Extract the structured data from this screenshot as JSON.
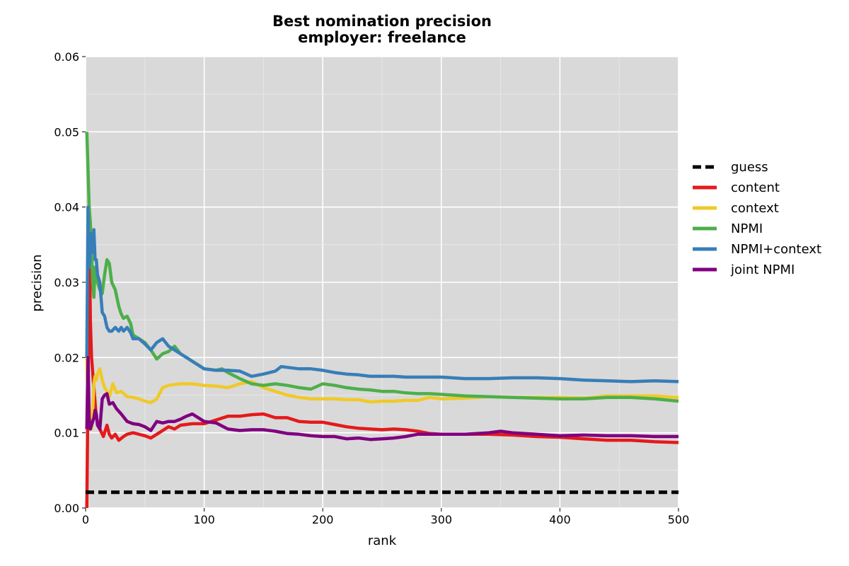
{
  "chart_data": {
    "type": "line",
    "title": "Best nomination precision",
    "subtitle": "employer: freelance",
    "xlabel": "rank",
    "ylabel": "precision",
    "xlim": [
      0,
      500
    ],
    "ylim": [
      0,
      0.06
    ],
    "xticks": [
      "0",
      "100",
      "200",
      "300",
      "400",
      "500"
    ],
    "yticks": [
      "0.00",
      "0.01",
      "0.02",
      "0.03",
      "0.04",
      "0.05",
      "0.06"
    ],
    "grid": true,
    "legend_position": "right-outside",
    "background": "#d9d9d9",
    "series": [
      {
        "name": "guess",
        "color": "#000000",
        "dashed": true,
        "x": [
          0,
          500
        ],
        "y": [
          0.0021,
          0.0021
        ]
      },
      {
        "name": "content",
        "color": "#e41a1c",
        "dashed": false,
        "x": [
          1,
          2,
          3,
          4,
          5,
          7,
          9,
          12,
          15,
          18,
          20,
          22,
          25,
          28,
          32,
          35,
          40,
          45,
          50,
          55,
          60,
          65,
          70,
          75,
          80,
          90,
          100,
          110,
          120,
          130,
          140,
          150,
          160,
          170,
          180,
          190,
          200,
          210,
          220,
          230,
          240,
          250,
          260,
          270,
          280,
          290,
          300,
          320,
          340,
          360,
          380,
          400,
          420,
          440,
          460,
          480,
          500
        ],
        "y": [
          0.0,
          0.016,
          0.04,
          0.025,
          0.02,
          0.016,
          0.012,
          0.0105,
          0.0095,
          0.011,
          0.0098,
          0.0093,
          0.0098,
          0.009,
          0.0095,
          0.0098,
          0.01,
          0.0098,
          0.0096,
          0.0093,
          0.0098,
          0.0103,
          0.0108,
          0.0105,
          0.011,
          0.0112,
          0.0112,
          0.0117,
          0.0122,
          0.0122,
          0.0124,
          0.0125,
          0.012,
          0.012,
          0.0115,
          0.0114,
          0.0114,
          0.0111,
          0.0108,
          0.0106,
          0.0105,
          0.0104,
          0.0105,
          0.0104,
          0.0102,
          0.0099,
          0.0098,
          0.0098,
          0.0098,
          0.0097,
          0.0095,
          0.0094,
          0.0092,
          0.009,
          0.009,
          0.0088,
          0.0087
        ]
      },
      {
        "name": "context",
        "color": "#f0c929",
        "dashed": false,
        "x": [
          1,
          2,
          3,
          4,
          5,
          6,
          7,
          8,
          9,
          10,
          12,
          14,
          16,
          18,
          20,
          23,
          26,
          30,
          35,
          40,
          45,
          50,
          55,
          60,
          65,
          70,
          80,
          90,
          100,
          110,
          120,
          130,
          140,
          150,
          160,
          170,
          180,
          190,
          200,
          210,
          220,
          230,
          240,
          250,
          260,
          270,
          280,
          290,
          300,
          320,
          340,
          360,
          380,
          400,
          420,
          440,
          460,
          480,
          500
        ],
        "y": [
          0.02,
          0.014,
          0.0135,
          0.012,
          0.0105,
          0.013,
          0.0165,
          0.0175,
          0.017,
          0.0178,
          0.0185,
          0.017,
          0.016,
          0.0155,
          0.0148,
          0.0165,
          0.0153,
          0.0155,
          0.0148,
          0.0147,
          0.0145,
          0.0142,
          0.014,
          0.0145,
          0.016,
          0.0163,
          0.0165,
          0.0165,
          0.0163,
          0.0162,
          0.016,
          0.0165,
          0.0168,
          0.016,
          0.0155,
          0.015,
          0.0147,
          0.0145,
          0.0145,
          0.0145,
          0.0144,
          0.0144,
          0.0141,
          0.0142,
          0.0142,
          0.0143,
          0.0143,
          0.0147,
          0.0145,
          0.0146,
          0.0148,
          0.0147,
          0.0147,
          0.0147,
          0.0146,
          0.0149,
          0.0149,
          0.0149,
          0.0147
        ]
      },
      {
        "name": "NPMI",
        "color": "#4daf4a",
        "dashed": false,
        "x": [
          1,
          2,
          3,
          4,
          5,
          6,
          7,
          8,
          10,
          12,
          14,
          16,
          18,
          20,
          22,
          25,
          28,
          30,
          32,
          35,
          38,
          40,
          45,
          50,
          55,
          60,
          65,
          70,
          75,
          80,
          90,
          100,
          110,
          115,
          120,
          130,
          140,
          150,
          160,
          170,
          180,
          190,
          200,
          210,
          220,
          230,
          240,
          250,
          260,
          270,
          280,
          290,
          300,
          320,
          340,
          360,
          380,
          400,
          420,
          440,
          460,
          480,
          500
        ],
        "y": [
          0.05,
          0.045,
          0.04,
          0.038,
          0.034,
          0.03,
          0.028,
          0.032,
          0.03,
          0.029,
          0.0285,
          0.031,
          0.033,
          0.0325,
          0.03,
          0.029,
          0.0268,
          0.0258,
          0.0252,
          0.0255,
          0.0245,
          0.023,
          0.0225,
          0.022,
          0.021,
          0.0198,
          0.0205,
          0.0208,
          0.0215,
          0.0205,
          0.0195,
          0.0185,
          0.0183,
          0.0185,
          0.018,
          0.0172,
          0.0165,
          0.0163,
          0.0165,
          0.0163,
          0.016,
          0.0158,
          0.0165,
          0.0163,
          0.016,
          0.0158,
          0.0157,
          0.0155,
          0.0155,
          0.0153,
          0.0152,
          0.0152,
          0.0151,
          0.0149,
          0.0148,
          0.0147,
          0.0146,
          0.0145,
          0.0145,
          0.0147,
          0.0147,
          0.0145,
          0.0142
        ]
      },
      {
        "name": "NPMI+context",
        "color": "#377eb8",
        "dashed": false,
        "x": [
          1,
          2,
          3,
          4,
          5,
          6,
          7,
          8,
          9,
          10,
          12,
          14,
          16,
          18,
          20,
          22,
          25,
          28,
          30,
          32,
          35,
          38,
          40,
          45,
          50,
          55,
          60,
          65,
          70,
          75,
          80,
          85,
          90,
          100,
          110,
          120,
          130,
          140,
          150,
          160,
          165,
          170,
          180,
          190,
          200,
          210,
          220,
          230,
          240,
          250,
          260,
          270,
          280,
          290,
          300,
          320,
          340,
          360,
          380,
          400,
          420,
          440,
          460,
          480,
          500
        ],
        "y": [
          0.02,
          0.04,
          0.032,
          0.034,
          0.0365,
          0.034,
          0.037,
          0.033,
          0.033,
          0.031,
          0.03,
          0.026,
          0.0255,
          0.024,
          0.0235,
          0.0235,
          0.024,
          0.0235,
          0.024,
          0.0235,
          0.024,
          0.0233,
          0.0225,
          0.0225,
          0.0218,
          0.021,
          0.022,
          0.0225,
          0.0215,
          0.021,
          0.0205,
          0.02,
          0.0195,
          0.0185,
          0.0183,
          0.0183,
          0.0182,
          0.0175,
          0.0178,
          0.0182,
          0.0188,
          0.0187,
          0.0185,
          0.0185,
          0.0183,
          0.018,
          0.0178,
          0.0177,
          0.0175,
          0.0175,
          0.0175,
          0.0174,
          0.0174,
          0.0174,
          0.0174,
          0.0172,
          0.0172,
          0.0173,
          0.0173,
          0.0172,
          0.017,
          0.0169,
          0.0168,
          0.0169,
          0.0168
        ]
      },
      {
        "name": "joint NPMI",
        "color": "#800080",
        "dashed": false,
        "x": [
          1,
          2,
          3,
          4,
          5,
          6,
          7,
          8,
          9,
          10,
          12,
          14,
          16,
          18,
          20,
          23,
          26,
          30,
          35,
          40,
          45,
          50,
          55,
          60,
          65,
          70,
          75,
          80,
          85,
          90,
          100,
          110,
          120,
          130,
          140,
          150,
          160,
          170,
          180,
          190,
          200,
          210,
          220,
          230,
          240,
          250,
          260,
          270,
          280,
          290,
          300,
          320,
          340,
          350,
          360,
          380,
          400,
          420,
          440,
          460,
          480,
          500
        ],
        "y": [
          0.0105,
          0.02,
          0.012,
          0.0105,
          0.011,
          0.0115,
          0.012,
          0.013,
          0.0125,
          0.011,
          0.0105,
          0.0145,
          0.015,
          0.0152,
          0.0138,
          0.014,
          0.0132,
          0.0125,
          0.0115,
          0.0112,
          0.0111,
          0.0108,
          0.0103,
          0.0115,
          0.0113,
          0.0115,
          0.0115,
          0.0118,
          0.0122,
          0.0125,
          0.0115,
          0.0113,
          0.0105,
          0.0103,
          0.0104,
          0.0104,
          0.0102,
          0.0099,
          0.0098,
          0.0096,
          0.0095,
          0.0095,
          0.0092,
          0.0093,
          0.0091,
          0.0092,
          0.0093,
          0.0095,
          0.0098,
          0.0098,
          0.0098,
          0.0098,
          0.01,
          0.0102,
          0.01,
          0.0098,
          0.0096,
          0.0097,
          0.0096,
          0.0096,
          0.0095,
          0.0095
        ]
      }
    ]
  }
}
